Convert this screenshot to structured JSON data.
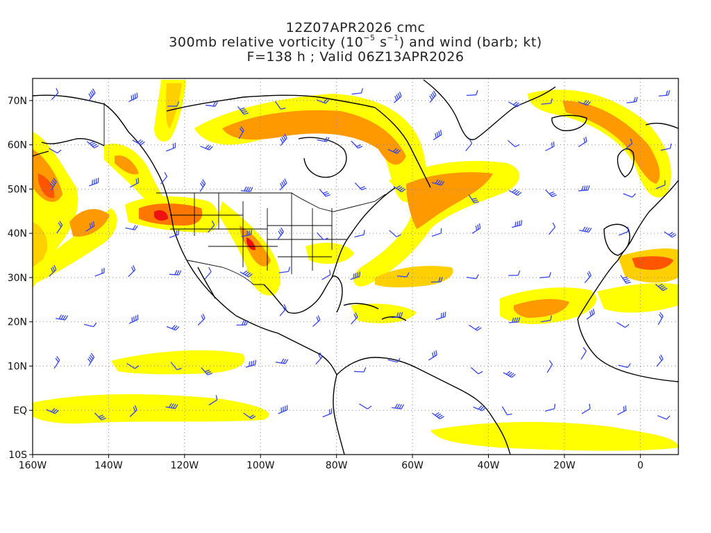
{
  "title": {
    "line1": "12Z07APR2026 cmc",
    "line2_prefix": "300mb relative vorticity (10",
    "line2_exp1": "−5",
    "line2_mid": " s",
    "line2_exp2": "−1",
    "line2_suffix": ") and wind (barb; kt)",
    "line3": "F=138 h ; Valid 06Z13APR2026"
  },
  "map": {
    "projection": "cylindrical equidistant",
    "lon_range": [
      -160,
      10
    ],
    "lat_range": [
      -10,
      75
    ],
    "y_ticks": [
      {
        "lat": 70,
        "label": "70N"
      },
      {
        "lat": 60,
        "label": "60N"
      },
      {
        "lat": 50,
        "label": "50N"
      },
      {
        "lat": 40,
        "label": "40N"
      },
      {
        "lat": 30,
        "label": "30N"
      },
      {
        "lat": 20,
        "label": "20N"
      },
      {
        "lat": 10,
        "label": "10N"
      },
      {
        "lat": 0,
        "label": "EQ"
      },
      {
        "lat": -10,
        "label": "10S"
      }
    ],
    "x_ticks": [
      {
        "lon": -160,
        "label": "160W"
      },
      {
        "lon": -140,
        "label": "140W"
      },
      {
        "lon": -120,
        "label": "120W"
      },
      {
        "lon": -100,
        "label": "100W"
      },
      {
        "lon": -80,
        "label": "80W"
      },
      {
        "lon": -60,
        "label": "60W"
      },
      {
        "lon": -40,
        "label": "40W"
      },
      {
        "lon": -20,
        "label": "20W"
      },
      {
        "lon": 0,
        "label": "0"
      }
    ],
    "grid": "dotted",
    "colors": {
      "vorticity_low": "#ffff00",
      "vorticity_mid": "#ffd000",
      "vorticity_high": "#ff9900",
      "vorticity_max": "#ff5500",
      "vorticity_peak": "#ee1111",
      "coast": "#000000",
      "barb": "#3344ee",
      "grid": "#888888"
    }
  }
}
